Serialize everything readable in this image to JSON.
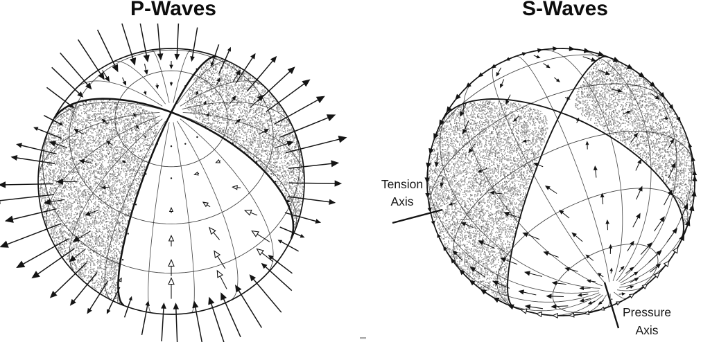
{
  "panels": {
    "p_waves": {
      "title": "P-Waves"
    },
    "s_waves": {
      "title": "S-Waves",
      "tension_axis_label": "Tension Axis",
      "pressure_axis_label": "Pressure Axis"
    }
  },
  "colors": {
    "ink": "#141414",
    "grid_line": "#2d2d2d",
    "stipple_light": "#9d9d9d",
    "stipple_dark": "#545454",
    "background": "#ffffff"
  }
}
